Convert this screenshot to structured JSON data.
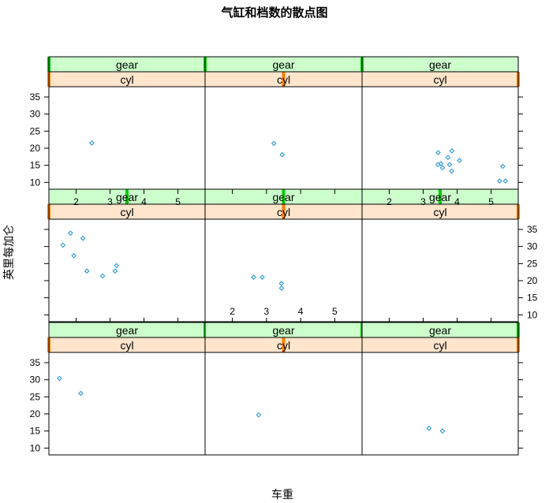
{
  "chart_data": {
    "type": "scatter",
    "title": "气缸和档数的散点图",
    "xlabel": "车重",
    "ylabel": "英里每加仑",
    "xlim": [
      1.2,
      5.8
    ],
    "ylim": [
      8,
      38
    ],
    "x_ticks": [
      2,
      3,
      4,
      5
    ],
    "y_ticks": [
      10,
      15,
      20,
      25,
      30,
      35
    ],
    "strip_labels": {
      "top": "gear",
      "bottom": "cyl"
    },
    "colors": {
      "points": "#1a8fd0",
      "gear_strip": "#ccffcc",
      "gear_marker": "#00cc00",
      "cyl_strip": "#ffe5cc",
      "cyl_marker": "#ff7f00",
      "frame": "#000000"
    },
    "panels": [
      {
        "row": 1,
        "col": 1,
        "gear_level": 1,
        "cyl_level": 1,
        "points": [
          [
            2.465,
            21.5
          ]
        ]
      },
      {
        "row": 1,
        "col": 2,
        "gear_level": 1,
        "cyl_level": 2,
        "points": [
          [
            3.215,
            21.4
          ],
          [
            3.46,
            18.1
          ]
        ]
      },
      {
        "row": 1,
        "col": 3,
        "gear_level": 1,
        "cyl_level": 3,
        "points": [
          [
            3.44,
            18.7
          ],
          [
            3.57,
            14.3
          ],
          [
            4.07,
            16.4
          ],
          [
            3.73,
            17.3
          ],
          [
            3.78,
            15.2
          ],
          [
            5.25,
            10.4
          ],
          [
            5.424,
            10.4
          ],
          [
            5.345,
            14.7
          ],
          [
            3.52,
            15.5
          ],
          [
            3.435,
            15.2
          ],
          [
            3.84,
            13.3
          ],
          [
            3.845,
            19.2
          ]
        ]
      },
      {
        "row": 2,
        "col": 1,
        "gear_level": 2,
        "cyl_level": 1,
        "points": [
          [
            2.32,
            22.8
          ],
          [
            3.19,
            24.4
          ],
          [
            3.15,
            22.8
          ],
          [
            2.2,
            32.4
          ],
          [
            1.615,
            30.4
          ],
          [
            1.835,
            33.9
          ],
          [
            1.935,
            27.3
          ],
          [
            2.78,
            21.4
          ]
        ]
      },
      {
        "row": 2,
        "col": 2,
        "gear_level": 2,
        "cyl_level": 2,
        "points": [
          [
            2.62,
            21.0
          ],
          [
            2.875,
            21.0
          ],
          [
            3.44,
            19.2
          ],
          [
            3.44,
            17.8
          ]
        ]
      },
      {
        "row": 2,
        "col": 3,
        "gear_level": 2,
        "cyl_level": 3,
        "points": []
      },
      {
        "row": 3,
        "col": 1,
        "gear_level": 3,
        "cyl_level": 1,
        "points": [
          [
            2.14,
            26.0
          ],
          [
            1.513,
            30.4
          ]
        ]
      },
      {
        "row": 3,
        "col": 2,
        "gear_level": 3,
        "cyl_level": 2,
        "points": [
          [
            2.77,
            19.7
          ]
        ]
      },
      {
        "row": 3,
        "col": 3,
        "gear_level": 3,
        "cyl_level": 3,
        "points": [
          [
            3.17,
            15.8
          ],
          [
            3.57,
            15.0
          ]
        ]
      }
    ]
  }
}
